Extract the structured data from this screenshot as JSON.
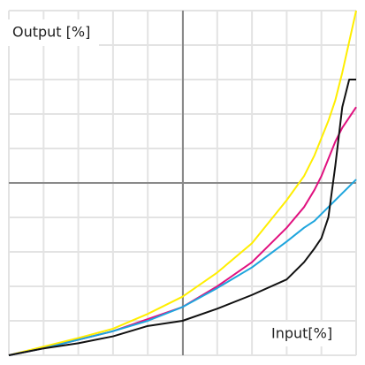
{
  "chart_data": {
    "type": "line",
    "x_label": "Input[%]",
    "y_label": "Output [%]",
    "x": [
      0,
      10,
      20,
      30,
      40,
      50,
      60,
      70,
      80,
      85,
      88,
      90,
      92,
      94,
      96,
      98,
      100
    ],
    "series": [
      {
        "color": "#ffee00",
        "values": [
          0,
          2.5,
          5,
          7.7,
          12,
          17,
          24,
          32.5,
          45,
          52,
          58,
          63,
          68,
          74,
          82,
          91,
          100
        ]
      },
      {
        "color": "#e0117f",
        "values": [
          0,
          2,
          4.5,
          7,
          10.5,
          14,
          20,
          27,
          37,
          43,
          48,
          52,
          57,
          62,
          66,
          69,
          72
        ]
      },
      {
        "color": "#1ea5dd",
        "values": [
          0,
          2,
          4.5,
          7,
          10,
          14,
          19.5,
          25.5,
          33,
          37,
          39,
          41,
          43,
          45,
          47,
          49,
          51
        ]
      },
      {
        "color": "#111111",
        "values": [
          0,
          2,
          3.5,
          5.5,
          8.5,
          10,
          13.5,
          17.5,
          22,
          27,
          31,
          34,
          40,
          55,
          72,
          80,
          80
        ]
      }
    ],
    "xlim": [
      0,
      100
    ],
    "ylim": [
      0,
      100
    ],
    "xticks": [
      0,
      10,
      20,
      30,
      40,
      50,
      60,
      70,
      80,
      90,
      100
    ],
    "yticks": [
      0,
      10,
      20,
      30,
      40,
      50,
      60,
      70,
      80,
      90,
      100
    ],
    "grid": true
  }
}
